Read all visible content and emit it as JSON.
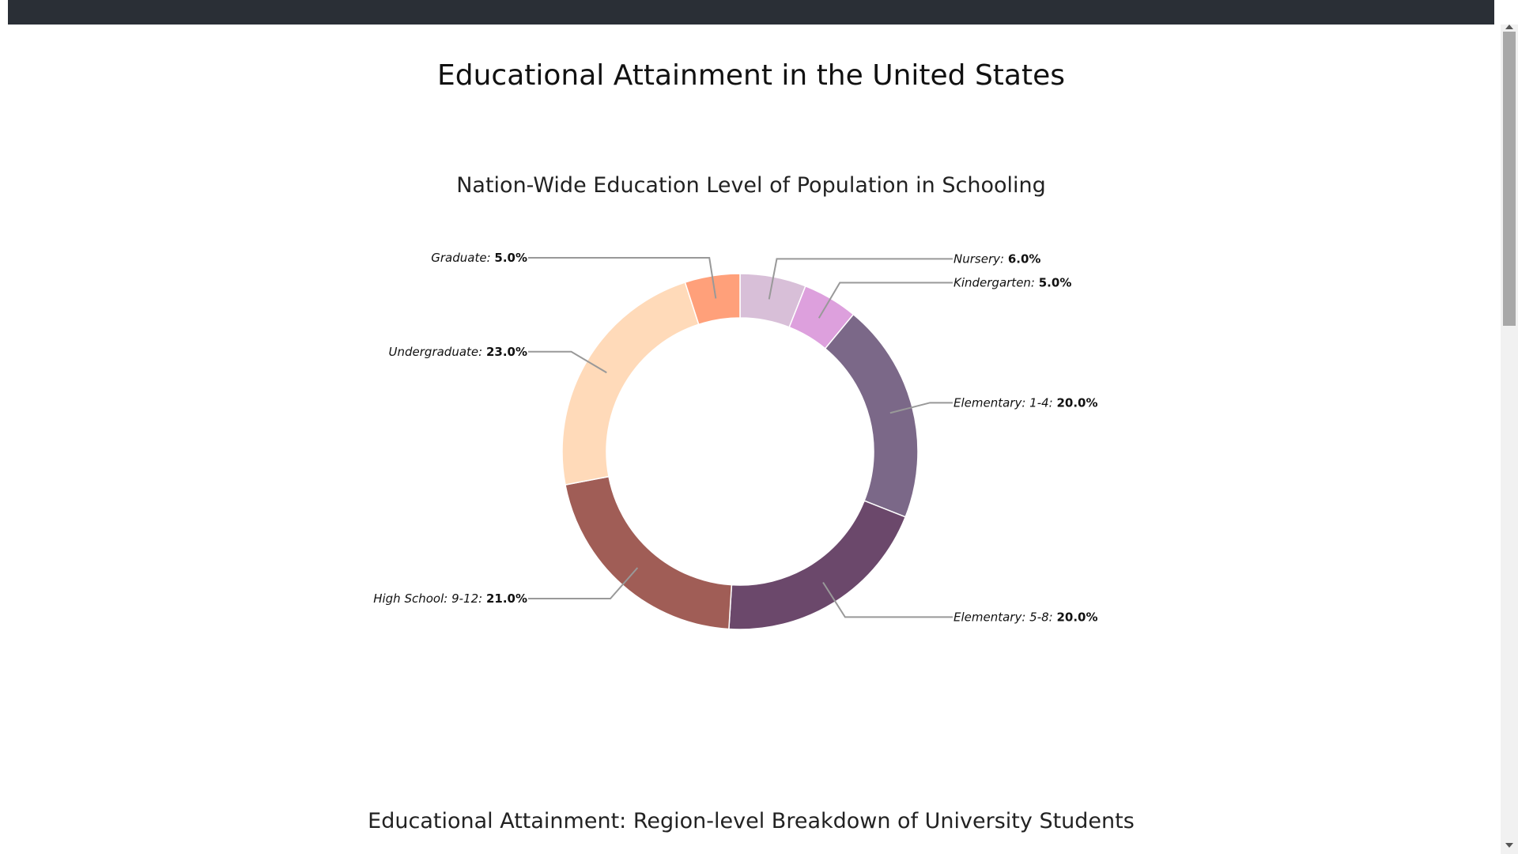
{
  "page": {
    "title": "Educational Attainment in the United States",
    "section2_title": "Educational Attainment: Region-level Breakdown of University Students"
  },
  "chart_data": {
    "type": "pie",
    "variant": "donut",
    "title": "Nation-Wide Education Level of Population in Schooling",
    "slices": [
      {
        "label": "Nursery",
        "value": 6.0,
        "display": "6.0%",
        "color": "#d8bfd8"
      },
      {
        "label": "Kindergarten",
        "value": 5.0,
        "display": "5.0%",
        "color": "#dda0dd"
      },
      {
        "label": "Elementary: 1-4",
        "value": 20.0,
        "display": "20.0%",
        "color": "#7b6888"
      },
      {
        "label": "Elementary: 5-8",
        "value": 20.0,
        "display": "20.0%",
        "color": "#6b486b"
      },
      {
        "label": "High School: 9-12",
        "value": 21.0,
        "display": "21.0%",
        "color": "#a05d56"
      },
      {
        "label": "Undergraduate",
        "value": 23.0,
        "display": "23.0%",
        "color": "#ffdab9"
      },
      {
        "label": "Graduate",
        "value": 5.0,
        "display": "5.0%",
        "color": "#ffa07a"
      }
    ]
  }
}
